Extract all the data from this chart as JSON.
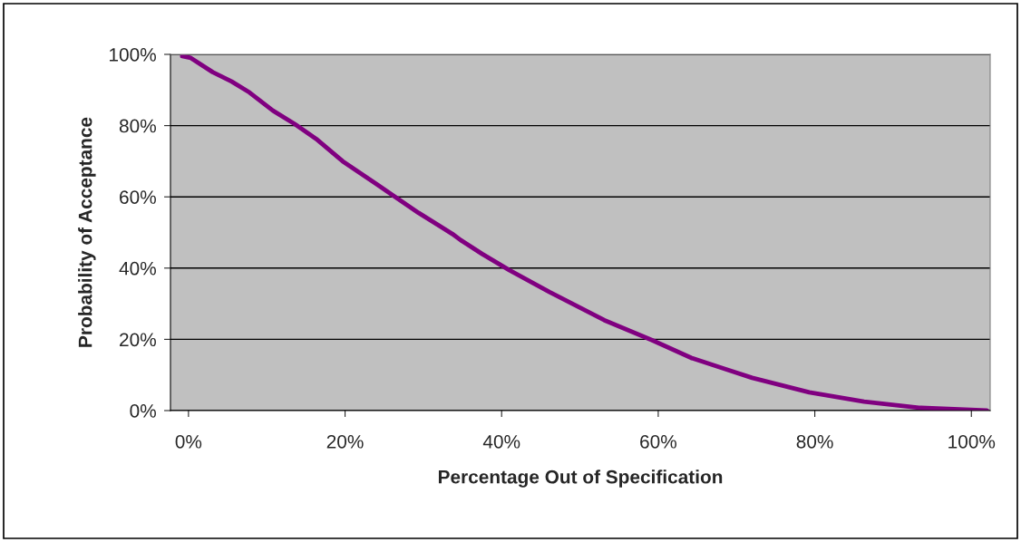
{
  "chart_data": {
    "type": "line",
    "xlabel": "Percentage Out of Specification",
    "ylabel": "Probability of Acceptance",
    "x": [
      -0.8,
      0.3,
      3.1,
      5.5,
      7.8,
      10.8,
      13.6,
      16.3,
      19.7,
      24,
      26.4,
      29.4,
      33.7,
      34.8,
      37.5,
      41,
      46.1,
      53.1,
      59.2,
      64.2,
      68.5,
      72,
      79.3,
      86.3,
      93.3,
      102
    ],
    "series": [
      {
        "color": "#800080",
        "values": [
          99.5,
          99,
          95,
          92.4,
          89.3,
          84.2,
          80.4,
          76.3,
          70,
          63.6,
          60,
          55.5,
          49.6,
          47.8,
          44,
          39.4,
          33.3,
          25.4,
          19.8,
          14.8,
          11.7,
          9.2,
          5.1,
          2.5,
          0.8,
          0
        ]
      }
    ],
    "xlim": [
      -2.3,
      102.4
    ],
    "ylim": [
      0,
      100
    ],
    "xticks": [
      {
        "value": 0,
        "label": "0%"
      },
      {
        "value": 20,
        "label": "20%"
      },
      {
        "value": 40,
        "label": "40%"
      },
      {
        "value": 60,
        "label": "60%"
      },
      {
        "value": 80,
        "label": "80%"
      },
      {
        "value": 100,
        "label": "100%"
      }
    ],
    "yticks": [
      {
        "value": 0,
        "label": "0%"
      },
      {
        "value": 20,
        "label": "20%"
      },
      {
        "value": 40,
        "label": "40%"
      },
      {
        "value": 60,
        "label": "60%"
      },
      {
        "value": 80,
        "label": "80%"
      },
      {
        "value": 100,
        "label": "100%"
      }
    ],
    "grid": "y",
    "legend": false,
    "marker": "none",
    "line_style": "solid"
  }
}
